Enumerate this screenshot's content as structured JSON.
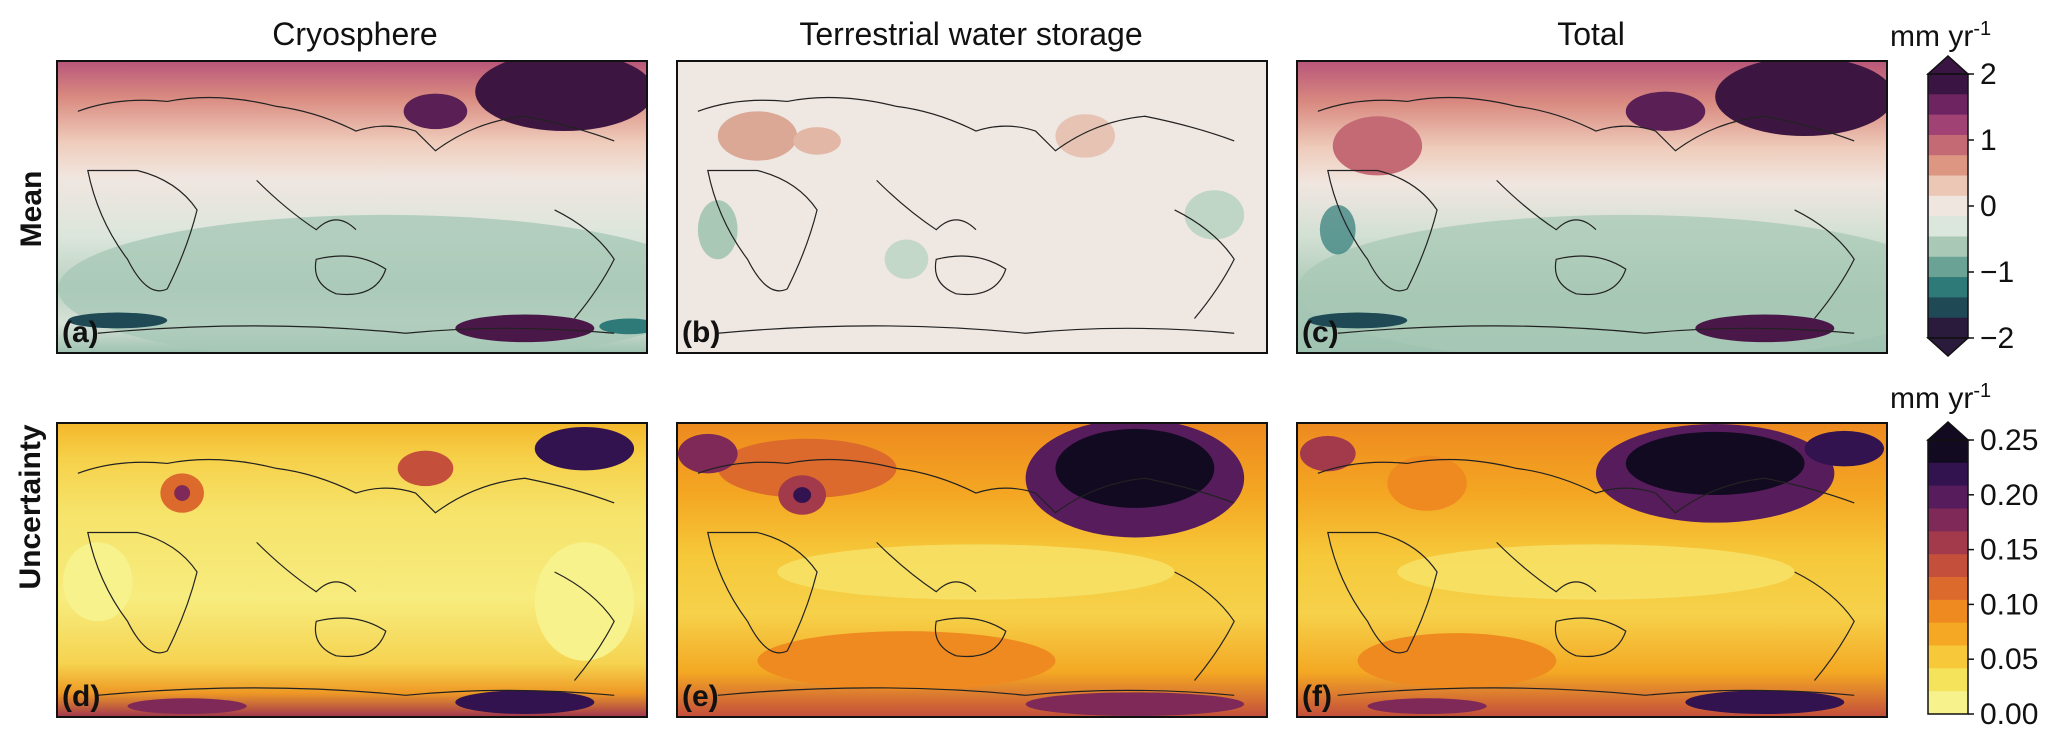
{
  "columns": [
    "Cryosphere",
    "Terrestrial water storage",
    "Total"
  ],
  "rows": [
    "Mean",
    "Uncertainty"
  ],
  "panels": {
    "a": "(a)",
    "b": "(b)",
    "c": "(c)",
    "d": "(d)",
    "e": "(e)",
    "f": "(f)"
  },
  "colorbars": {
    "mean": {
      "unit": "mm yr",
      "unit_exp": "-1",
      "ticks": [
        "2",
        "1",
        "0",
        "−1",
        "−2"
      ],
      "range": [
        -2,
        2
      ],
      "colors": [
        "#2a1a3c",
        "#1f4a55",
        "#2d7a78",
        "#6aa395",
        "#a9c9b6",
        "#dbe6dc",
        "#efe6e0",
        "#ecc7b6",
        "#dc9682",
        "#c46a74",
        "#a04273",
        "#6e2460",
        "#3a1442"
      ]
    },
    "uncertainty": {
      "unit": "mm yr",
      "unit_exp": "-1",
      "ticks": [
        "0.25",
        "0.20",
        "0.15",
        "0.10",
        "0.05",
        "0.00"
      ],
      "range": [
        0,
        0.25
      ],
      "colors": [
        "#f7f28c",
        "#f6e35c",
        "#f6c83a",
        "#f4a823",
        "#ee8a1f",
        "#dc6a2c",
        "#c44f3b",
        "#a33a4c",
        "#7e2957",
        "#571c5c",
        "#33134f",
        "#120a20"
      ]
    }
  }
}
